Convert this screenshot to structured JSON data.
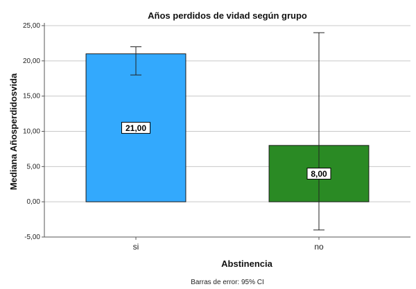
{
  "chart_data": {
    "type": "bar",
    "title": "Años perdidos de vidad según grupo",
    "xlabel": "Abstinencia",
    "ylabel": "Mediana Añosperdidosvida",
    "categories": [
      "si",
      "no"
    ],
    "values": [
      21,
      8
    ],
    "value_labels": [
      "21,00",
      "8,00"
    ],
    "error_low": [
      18,
      -4
    ],
    "error_high": [
      22,
      24
    ],
    "colors": [
      "#33a9fd",
      "#2a8a24"
    ],
    "ylim": [
      -5,
      25
    ],
    "yticks": [
      -5,
      0,
      5,
      10,
      15,
      20,
      25
    ],
    "ytick_labels": [
      "-5,00",
      "0,00",
      "5,00",
      "10,00",
      "15,00",
      "20,00",
      "25,00"
    ],
    "grid": true,
    "footnote": "Barras de error: 95% CI"
  }
}
